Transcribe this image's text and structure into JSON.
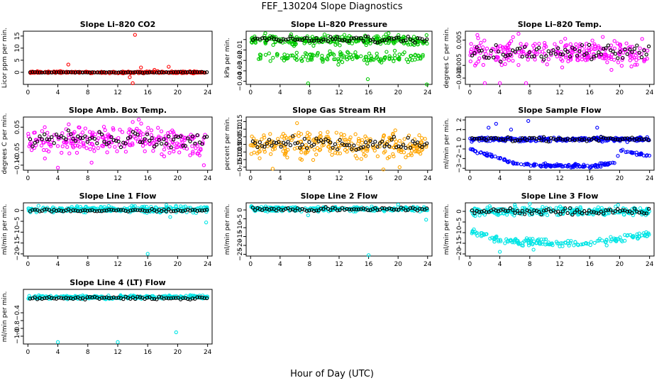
{
  "figure": {
    "title": "FEF_130204  Slope Diagnostics",
    "xlabel": "Hour of Day (UTC)"
  },
  "colors": {
    "black": "#000000",
    "red": "#ff0000",
    "green": "#00c800",
    "magenta": "#ff00ff",
    "orange": "#ffa500",
    "blue": "#0000ff",
    "cyan": "#00e5e5"
  },
  "chart_data": [
    {
      "type": "scatter",
      "title": "Slope Li–820 CO2",
      "ylabel": "Licor ppm per min.",
      "xlim": [
        0,
        24
      ],
      "xticks": [
        "0",
        "4",
        "8",
        "12",
        "16",
        "20",
        "24"
      ],
      "ylim": [
        -5,
        17
      ],
      "yticks": [
        0,
        5,
        10,
        15
      ],
      "ytick_labels": [
        "0",
        "5",
        "10",
        "15"
      ],
      "color": "red",
      "main": {
        "center": 0,
        "spread": 0.25
      },
      "black": {
        "center": 0,
        "spread": 0.12
      },
      "outliers": [
        [
          14.3,
          15.5
        ],
        [
          14.0,
          -4.5
        ],
        [
          13.6,
          -2.0
        ],
        [
          18.8,
          2.3
        ],
        [
          15.1,
          2.0
        ],
        [
          5.4,
          3.2
        ],
        [
          16.9,
          1.0
        ]
      ]
    },
    {
      "type": "scatter",
      "title": "Slope Li–820 Pressure",
      "ylabel": "kPa per min.",
      "xlim": [
        0,
        24
      ],
      "xticks": [
        "0",
        "4",
        "8",
        "12",
        "16",
        "20",
        "24"
      ],
      "ylim": [
        -0.043,
        0.008
      ],
      "yticks": [
        0.0,
        -0.01,
        -0.02,
        -0.03,
        -0.04
      ],
      "ytick_labels": [
        "",
        "−0.01",
        "−0.02",
        "−0.03",
        "−0.04"
      ],
      "color": "green",
      "main": {
        "center": -0.0005,
        "spread": 0.003
      },
      "band": {
        "center": -0.017,
        "spread": 0.0035
      },
      "black": {
        "center": 0.0,
        "spread": 0.002
      },
      "outliers": [
        [
          23.9,
          -0.043
        ],
        [
          7.8,
          -0.042
        ],
        [
          2.0,
          0.006
        ],
        [
          5.5,
          0.005
        ],
        [
          15.9,
          -0.038
        ],
        [
          18.7,
          0.006
        ]
      ]
    },
    {
      "type": "scatter",
      "title": "Slope Li–820 Temp.",
      "ylabel": "degrees C per min.",
      "xlim": [
        0,
        24
      ],
      "xticks": [
        "0",
        "4",
        "8",
        "12",
        "16",
        "20",
        "24"
      ],
      "ylim": [
        -0.0125,
        0.0085
      ],
      "yticks": [
        0.005,
        -0.005,
        -0.01
      ],
      "ytick_labels": [
        "0.005",
        "−0.005",
        "−0.010"
      ],
      "color": "magenta",
      "main": {
        "center": 0.0,
        "spread": 0.0035
      },
      "black": {
        "center": 0.0,
        "spread": 0.0025
      },
      "outliers": [
        [
          2.0,
          -0.012
        ],
        [
          4.0,
          -0.012
        ],
        [
          6.5,
          0.0075
        ],
        [
          7.5,
          -0.012
        ],
        [
          1.0,
          0.007
        ]
      ]
    },
    {
      "type": "scatter",
      "title": "Slope Amb. Box Temp.",
      "ylabel": "degrees C per min.",
      "xlim": [
        0,
        24
      ],
      "xticks": [
        "0",
        "4",
        "8",
        "12",
        "16",
        "20",
        "24"
      ],
      "ylim": [
        -0.12,
        0.09
      ],
      "yticks": [
        0.05,
        -0.05,
        -0.1
      ],
      "ytick_labels": [
        "0.05",
        "−0.05",
        "−0.10"
      ],
      "color": "magenta",
      "main": {
        "center": -0.005,
        "spread": 0.04
      },
      "black": {
        "center": 0.0,
        "spread": 0.02
      },
      "outliers": [
        [
          4.0,
          -0.11
        ],
        [
          14.8,
          0.08
        ],
        [
          23.5,
          -0.1
        ],
        [
          8.5,
          -0.09
        ]
      ]
    },
    {
      "type": "scatter",
      "title": "Slope Gas Stream RH",
      "ylabel": "percent per min.",
      "xlim": [
        0,
        24
      ],
      "xticks": [
        "0",
        "4",
        "8",
        "12",
        "16",
        "20",
        "24"
      ],
      "ylim": [
        -0.17,
        0.18
      ],
      "yticks": [
        0.15,
        0.1,
        0.05,
        0.0,
        -0.05,
        -0.1,
        -0.15
      ],
      "ytick_labels": [
        "0.15",
        "0.10",
        "0.05",
        "0.00",
        "−0.05",
        "−0.10",
        "−0.15"
      ],
      "color": "orange",
      "main": {
        "center": 0.0,
        "spread": 0.06
      },
      "black": {
        "center": 0.0,
        "spread": 0.03
      },
      "outliers": [
        [
          18.0,
          -0.165
        ],
        [
          6.3,
          0.14
        ],
        [
          20.2,
          -0.15
        ],
        [
          3.0,
          -0.16
        ]
      ]
    },
    {
      "type": "scatter",
      "title": "Slope Sample Flow",
      "ylabel": "ml/min per min.",
      "xlim": [
        0,
        24
      ],
      "xticks": [
        "0",
        "4",
        "8",
        "12",
        "16",
        "20",
        "24"
      ],
      "ylim": [
        -3.2,
        2.3
      ],
      "yticks": [
        2,
        1,
        0,
        -1,
        -2,
        -3
      ],
      "ytick_labels": [
        "2",
        "1",
        "0",
        "−1",
        "−2",
        "−3"
      ],
      "color": "blue",
      "main": {
        "center": 0.0,
        "spread": 0.15
      },
      "curve": [
        [
          0,
          -1.0
        ],
        [
          2,
          -1.5
        ],
        [
          4,
          -2.0
        ],
        [
          6,
          -2.5
        ],
        [
          10,
          -2.7
        ],
        [
          14,
          -2.75
        ],
        [
          16,
          -2.8
        ],
        [
          18,
          -2.6
        ],
        [
          19.5,
          -2.4
        ],
        [
          20,
          -1.2
        ],
        [
          22,
          -1.5
        ],
        [
          24,
          -1.7
        ]
      ],
      "curve_spread": 0.12,
      "black": {
        "center": 0.0,
        "spread": 0.15
      },
      "outliers": [
        [
          2.5,
          1.2
        ],
        [
          3.5,
          1.6
        ],
        [
          7.8,
          1.9
        ],
        [
          5.5,
          1.0
        ],
        [
          17.0,
          1.2
        ]
      ]
    },
    {
      "type": "scatter",
      "title": "Slope Line 1 Flow",
      "ylabel": "ml/min per min.",
      "xlim": [
        0,
        24
      ],
      "xticks": [
        "0",
        "4",
        "8",
        "12",
        "16",
        "20",
        "24"
      ],
      "ylim": [
        -21,
        3.5
      ],
      "yticks": [
        0,
        -5,
        -10,
        -15,
        -20
      ],
      "ytick_labels": [
        "0",
        "−5",
        "−10",
        "−15",
        "−20"
      ],
      "color": "cyan",
      "main": {
        "center": 0.5,
        "spread": 1.0
      },
      "black": {
        "center": 0.0,
        "spread": 0.4
      },
      "outliers": [
        [
          16.0,
          -20.0
        ],
        [
          23.8,
          -5.5
        ],
        [
          18.5,
          2.5
        ],
        [
          19.0,
          -3.0
        ]
      ]
    },
    {
      "type": "scatter",
      "title": "Slope Line 2 Flow",
      "ylabel": "ml/min per min.",
      "xlim": [
        0,
        24
      ],
      "xticks": [
        "0",
        "4",
        "8",
        "12",
        "16",
        "20",
        "24"
      ],
      "ylim": [
        -26,
        4
      ],
      "yticks": [
        0,
        -5,
        -10,
        -15,
        -20,
        -25
      ],
      "ytick_labels": [
        "0",
        "−5",
        "−10",
        "−15",
        "−20",
        "−25"
      ],
      "color": "cyan",
      "main": {
        "center": 0.5,
        "spread": 1.0
      },
      "black": {
        "center": 0.5,
        "spread": 0.8
      },
      "outliers": [
        [
          16.0,
          -25.5
        ],
        [
          23.8,
          -5.5
        ],
        [
          20.0,
          3.0
        ],
        [
          7.8,
          -3.0
        ]
      ]
    },
    {
      "type": "scatter",
      "title": "Slope Line 3 Flow",
      "ylabel": "ml/min per min.",
      "xlim": [
        0,
        24
      ],
      "xticks": [
        "0",
        "4",
        "8",
        "12",
        "16",
        "20",
        "24"
      ],
      "ylim": [
        -21,
        4
      ],
      "yticks": [
        0,
        -5,
        -10,
        -15,
        -20
      ],
      "ytick_labels": [
        "0",
        "−5",
        "−10",
        "−15",
        "−20"
      ],
      "color": "cyan",
      "main": {
        "center": 0.0,
        "spread": 1.3
      },
      "curve": [
        [
          0,
          -9.5
        ],
        [
          2,
          -11.0
        ],
        [
          4,
          -13.5
        ],
        [
          8,
          -14.5
        ],
        [
          12,
          -15.0
        ],
        [
          16,
          -15.0
        ],
        [
          20,
          -13.0
        ],
        [
          24,
          -10.5
        ]
      ],
      "curve_spread": 1.2,
      "black": {
        "center": 0.0,
        "spread": 1.0
      },
      "outliers": [
        [
          8.0,
          3.5
        ],
        [
          19.8,
          3.0
        ],
        [
          8.5,
          -18.0
        ],
        [
          4.0,
          -19.0
        ],
        [
          6.0,
          3.0
        ]
      ]
    },
    {
      "type": "scatter",
      "title": "Slope Line 4 (LT) Flow",
      "ylabel": "ml/min per min.",
      "xlim": [
        0,
        24
      ],
      "xticks": [
        "0",
        "4",
        "8",
        "12",
        "16",
        "20",
        "24"
      ],
      "ylim": [
        -1.2,
        0.2
      ],
      "yticks": [
        -0.4,
        -0.6,
        -0.8,
        -1.0
      ],
      "ytick_labels": [
        "−0.4",
        "",
        "−0.8",
        "−1.0"
      ],
      "color": "cyan",
      "main": {
        "center": 0.0,
        "spread": 0.03
      },
      "black": {
        "center": -0.02,
        "spread": 0.025
      },
      "outliers": [
        [
          4.0,
          -1.15
        ],
        [
          12.0,
          -1.15
        ],
        [
          19.8,
          -0.9
        ]
      ]
    }
  ]
}
